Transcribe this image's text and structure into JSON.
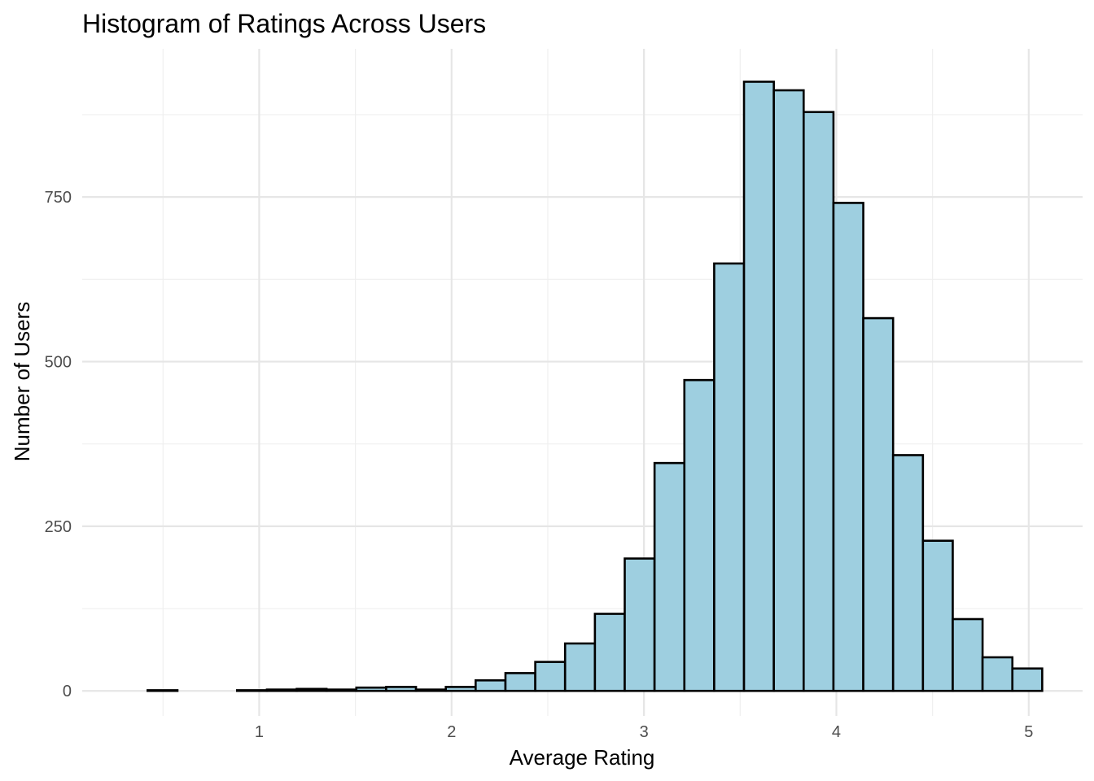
{
  "chart_data": {
    "type": "bar",
    "title": "Histogram of Ratings Across Users",
    "xlabel": "Average Rating",
    "ylabel": "Number of Users",
    "bin_width": 0.155,
    "bin_edges_start": 0.42,
    "counts": [
      1,
      0,
      0,
      1,
      2,
      3,
      2,
      5,
      6,
      2,
      6,
      16,
      27,
      44,
      72,
      117,
      201,
      346,
      472,
      649,
      925,
      912,
      879,
      741,
      566,
      358,
      228,
      109,
      51,
      34
    ],
    "xlim": [
      0.08,
      5.28
    ],
    "ylim": [
      -38,
      975
    ],
    "x_ticks": [
      1,
      2,
      3,
      4,
      5
    ],
    "x_tick_labels": [
      "1",
      "2",
      "3",
      "4",
      "5"
    ],
    "y_ticks": [
      0,
      250,
      500,
      750
    ],
    "y_tick_labels": [
      "0",
      "250",
      "500",
      "750"
    ],
    "grid": true,
    "bar_fill": "#9ecfe0",
    "bar_stroke": "#000000",
    "background": "#ffffff"
  }
}
